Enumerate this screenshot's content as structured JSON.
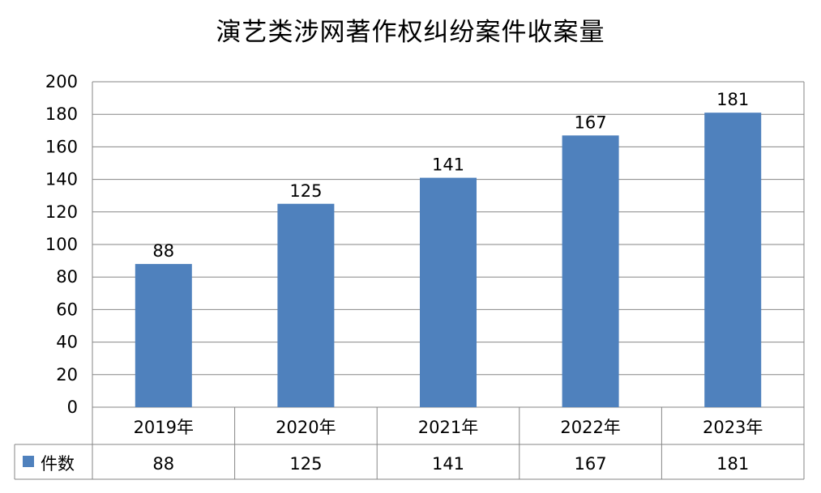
{
  "chart_data": {
    "type": "bar",
    "title": "演艺类涉网著作权纠纷案件收案量",
    "categories": [
      "2019年",
      "2020年",
      "2021年",
      "2022年",
      "2023年"
    ],
    "series": [
      {
        "name": "件数",
        "values": [
          88,
          125,
          141,
          167,
          181
        ],
        "color": "#4f81bd"
      }
    ],
    "ylim": [
      0,
      200
    ],
    "yticks": [
      0,
      20,
      40,
      60,
      80,
      100,
      120,
      140,
      160,
      180,
      200
    ],
    "grid": true,
    "legend": "data-table-left",
    "data_table": true
  }
}
